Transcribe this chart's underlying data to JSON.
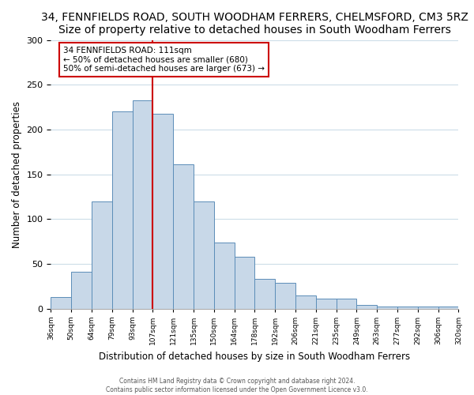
{
  "title": "34, FENNFIELDS ROAD, SOUTH WOODHAM FERRERS, CHELMSFORD, CM3 5RZ",
  "subtitle": "Size of property relative to detached houses in South Woodham Ferrers",
  "xlabel": "Distribution of detached houses by size in South Woodham Ferrers",
  "ylabel": "Number of detached properties",
  "bin_labels": [
    "36sqm",
    "50sqm",
    "64sqm",
    "79sqm",
    "93sqm",
    "107sqm",
    "121sqm",
    "135sqm",
    "150sqm",
    "164sqm",
    "178sqm",
    "192sqm",
    "206sqm",
    "221sqm",
    "235sqm",
    "249sqm",
    "263sqm",
    "277sqm",
    "292sqm",
    "306sqm",
    "320sqm"
  ],
  "bar_values": [
    13,
    41,
    120,
    220,
    233,
    218,
    161,
    120,
    74,
    58,
    33,
    29,
    15,
    11,
    11,
    4,
    2,
    2,
    2,
    2
  ],
  "bar_color": "#c8d8e8",
  "bar_edge_color": "#5b8db8",
  "vline_color": "#cc0000",
  "vline_position": 5,
  "annotation_title": "34 FENNFIELDS ROAD: 111sqm",
  "annotation_line1": "← 50% of detached houses are smaller (680)",
  "annotation_line2": "50% of semi-detached houses are larger (673) →",
  "annotation_box_color": "#ffffff",
  "annotation_border_color": "#cc0000",
  "ylim": [
    0,
    300
  ],
  "yticks": [
    0,
    50,
    100,
    150,
    200,
    250,
    300
  ],
  "footer1": "Contains HM Land Registry data © Crown copyright and database right 2024.",
  "footer2": "Contains public sector information licensed under the Open Government Licence v3.0.",
  "bg_color": "#ffffff",
  "grid_color": "#ccdde8",
  "title_fontsize": 10,
  "subtitle_fontsize": 9
}
